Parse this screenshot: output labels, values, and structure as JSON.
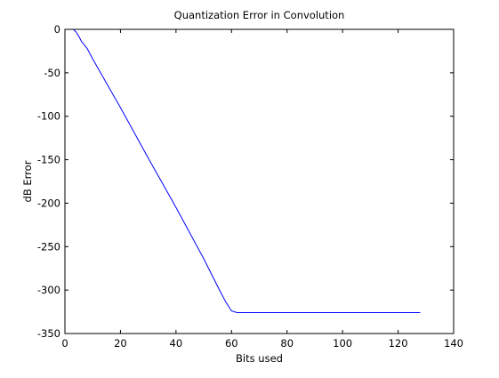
{
  "chart_data": {
    "type": "line",
    "title": "Quantization Error in Convolution",
    "xlabel": "Bits used",
    "ylabel": "dB Error",
    "xlim": [
      0,
      140
    ],
    "ylim": [
      -350,
      0
    ],
    "xticks": [
      0,
      20,
      40,
      60,
      80,
      100,
      120,
      140
    ],
    "yticks": [
      0,
      -50,
      -100,
      -150,
      -200,
      -250,
      -300,
      -350
    ],
    "xtick_labels": [
      "0",
      "20",
      "40",
      "60",
      "80",
      "100",
      "120",
      "140"
    ],
    "ytick_labels": [
      "0",
      "-50",
      "-100",
      "-150",
      "-200",
      "-250",
      "-300",
      "-350"
    ],
    "grid": false,
    "line_color": "#0000ff",
    "series": [
      {
        "x": [
          3,
          4,
          5,
          6,
          8,
          10,
          15,
          20,
          30,
          40,
          50,
          56,
          58,
          60,
          62,
          70,
          80,
          100,
          120,
          128
        ],
        "y": [
          0,
          -3,
          -8,
          -14,
          -22,
          -34,
          -62,
          -90,
          -148,
          -205,
          -264,
          -302,
          -314,
          -324,
          -326,
          -326,
          -326,
          -326,
          -326,
          -326
        ]
      }
    ]
  }
}
